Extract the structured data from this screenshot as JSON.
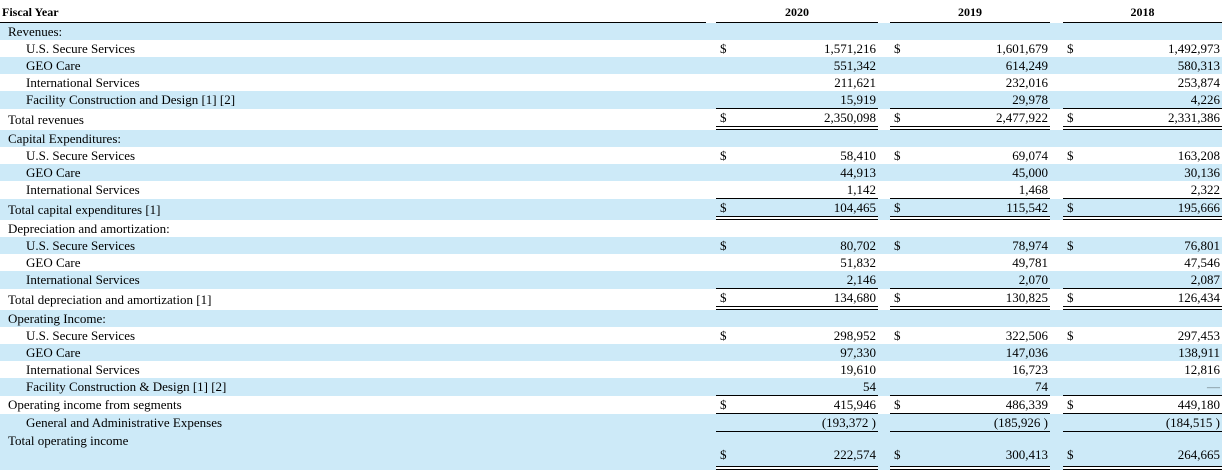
{
  "table": {
    "currency_symbol": "$",
    "empty_dash": "—",
    "colors": {
      "row_highlight": "#cdeaf8",
      "text": "#000000",
      "rule": "#000000",
      "dash": "#6d7b82"
    },
    "header": {
      "label": "Fiscal Year",
      "years": [
        "2020",
        "2019",
        "2018"
      ]
    },
    "rows": [
      {
        "label": "Revenues:",
        "indent": 0,
        "shaded": true,
        "dollars": false,
        "values": [
          "",
          "",
          ""
        ]
      },
      {
        "label": "U.S. Secure Services",
        "indent": 1,
        "shaded": false,
        "dollars": true,
        "values": [
          "1,571,216",
          "1,601,679",
          "1,492,973"
        ]
      },
      {
        "label": "GEO Care",
        "indent": 1,
        "shaded": true,
        "dollars": false,
        "values": [
          "551,342",
          "614,249",
          "580,313"
        ]
      },
      {
        "label": "International Services",
        "indent": 1,
        "shaded": false,
        "dollars": false,
        "values": [
          "211,621",
          "232,016",
          "253,874"
        ]
      },
      {
        "label": "Facility Construction and Design [1] [2]",
        "indent": 1,
        "shaded": true,
        "dollars": false,
        "values": [
          "15,919",
          "29,978",
          "4,226"
        ],
        "rule": "single"
      },
      {
        "label": "Total revenues",
        "indent": 0,
        "shaded": false,
        "dollars": true,
        "values": [
          "2,350,098",
          "2,477,922",
          "2,331,386"
        ],
        "rule": "double"
      },
      {
        "label": "Capital Expenditures:",
        "indent": 0,
        "shaded": true,
        "dollars": false,
        "values": [
          "",
          "",
          ""
        ]
      },
      {
        "label": "U.S. Secure Services",
        "indent": 1,
        "shaded": false,
        "dollars": true,
        "values": [
          "58,410",
          "69,074",
          "163,208"
        ]
      },
      {
        "label": "GEO Care",
        "indent": 1,
        "shaded": true,
        "dollars": false,
        "values": [
          "44,913",
          "45,000",
          "30,136"
        ]
      },
      {
        "label": "International Services",
        "indent": 1,
        "shaded": false,
        "dollars": false,
        "values": [
          "1,142",
          "1,468",
          "2,322"
        ],
        "rule": "single"
      },
      {
        "label": "Total capital expenditures [1]",
        "indent": 0,
        "shaded": true,
        "dollars": true,
        "values": [
          "104,465",
          "115,542",
          "195,666"
        ],
        "rule": "double"
      },
      {
        "label": "Depreciation and amortization:",
        "indent": 0,
        "shaded": false,
        "dollars": false,
        "values": [
          "",
          "",
          ""
        ]
      },
      {
        "label": "U.S. Secure Services",
        "indent": 1,
        "shaded": true,
        "dollars": true,
        "values": [
          "80,702",
          "78,974",
          "76,801"
        ]
      },
      {
        "label": "GEO Care",
        "indent": 1,
        "shaded": false,
        "dollars": false,
        "values": [
          "51,832",
          "49,781",
          "47,546"
        ]
      },
      {
        "label": "International Services",
        "indent": 1,
        "shaded": true,
        "dollars": false,
        "values": [
          "2,146",
          "2,070",
          "2,087"
        ],
        "rule": "single"
      },
      {
        "label": "Total depreciation and amortization [1]",
        "indent": 0,
        "shaded": false,
        "dollars": true,
        "values": [
          "134,680",
          "130,825",
          "126,434"
        ],
        "rule": "double"
      },
      {
        "label": "Operating Income:",
        "indent": 0,
        "shaded": true,
        "dollars": false,
        "values": [
          "",
          "",
          ""
        ]
      },
      {
        "label": "U.S. Secure Services",
        "indent": 1,
        "shaded": false,
        "dollars": true,
        "values": [
          "298,952",
          "322,506",
          "297,453"
        ]
      },
      {
        "label": "GEO Care",
        "indent": 1,
        "shaded": true,
        "dollars": false,
        "values": [
          "97,330",
          "147,036",
          "138,911"
        ]
      },
      {
        "label": "International Services",
        "indent": 1,
        "shaded": false,
        "dollars": false,
        "values": [
          "19,610",
          "16,723",
          "12,816"
        ]
      },
      {
        "label": "Facility Construction & Design [1] [2]",
        "indent": 1,
        "shaded": true,
        "dollars": false,
        "values": [
          "54",
          "74",
          "—"
        ],
        "rule": "single"
      },
      {
        "label": "Operating income from segments",
        "indent": 0,
        "shaded": false,
        "dollars": true,
        "values": [
          "415,946",
          "486,339",
          "449,180"
        ],
        "rule": "single"
      },
      {
        "label": "General and Administrative Expenses",
        "indent": 1,
        "shaded": true,
        "dollars": false,
        "values": [
          "(193,372 )",
          "(185,926 )",
          "(184,515 )"
        ],
        "rule": "single"
      },
      {
        "label": "Total operating income",
        "indent": 0,
        "shaded": true,
        "dollars": true,
        "values": [
          "222,574",
          "300,413",
          "264,665"
        ],
        "rule": "double",
        "tall": true
      }
    ]
  }
}
